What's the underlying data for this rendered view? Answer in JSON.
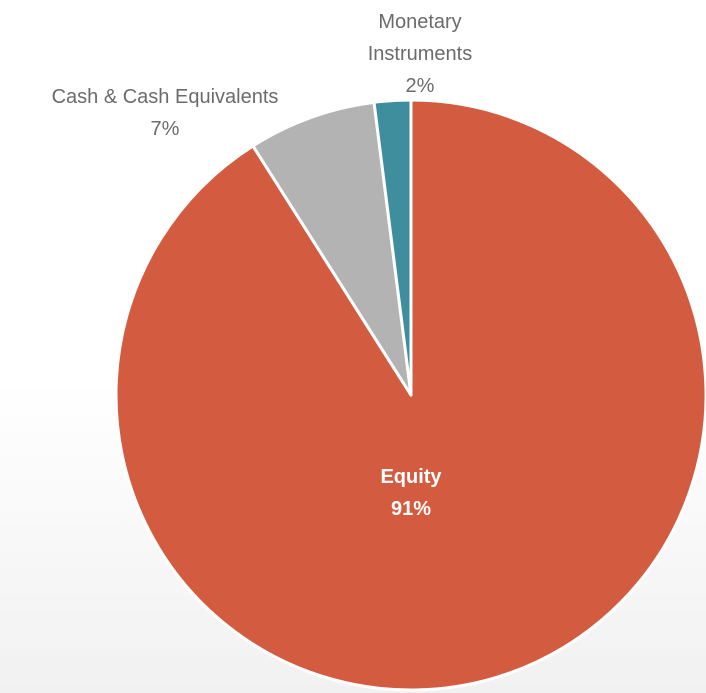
{
  "chart_data": {
    "type": "pie",
    "categories": [
      "Equity",
      "Cash & Cash Equivalents",
      "Monetary Instruments"
    ],
    "values": [
      91,
      7,
      2
    ],
    "value_labels": [
      "91%",
      "7%",
      "2%"
    ],
    "colors": [
      "#d35b3f",
      "#b3b3b3",
      "#3f8e9e"
    ]
  }
}
